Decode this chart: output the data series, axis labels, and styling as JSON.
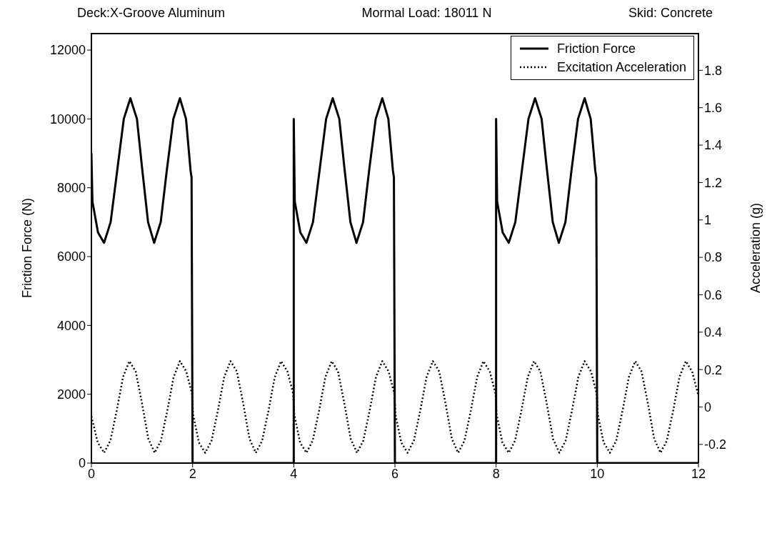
{
  "chart_data": {
    "type": "line",
    "title": "Deck:X-Groove Aluminum",
    "annotations": [
      "Mormal Load: 18011 N",
      "Skid: Concrete"
    ],
    "ylabel": "Friction Force (N)",
    "y2label": "Acceleration (g)",
    "xlim": [
      0,
      12
    ],
    "xticks": [
      0,
      2,
      4,
      6,
      8,
      10,
      12
    ],
    "ylim": [
      0,
      12500
    ],
    "yticks": [
      0,
      2000,
      4000,
      6000,
      8000,
      10000,
      12000
    ],
    "y2lim": [
      -0.3,
      2.0
    ],
    "y2ticks": [
      -0.2,
      0,
      0.2,
      0.4,
      0.6,
      0.8,
      1,
      1.2,
      1.4,
      1.6,
      1.8
    ],
    "legend": "top right",
    "marker": "none",
    "series": [
      {
        "name": "Friction Force",
        "color": "#000000",
        "line_style": "solid",
        "x": [
          0,
          0.02,
          0.13,
          0.25,
          0.38,
          0.51,
          0.64,
          0.77,
          0.9,
          1.0,
          1.12,
          1.24,
          1.37,
          1.49,
          1.62,
          1.75,
          1.87,
          1.96,
          1.98,
          2.0,
          4.0,
          4.0,
          4.02,
          4.13,
          4.25,
          4.38,
          4.51,
          4.64,
          4.77,
          4.9,
          5.0,
          5.12,
          5.24,
          5.37,
          5.49,
          5.62,
          5.75,
          5.87,
          5.96,
          5.98,
          6.0,
          8.0,
          8.0,
          8.02,
          8.13,
          8.25,
          8.38,
          8.51,
          8.64,
          8.77,
          8.9,
          9.0,
          9.12,
          9.24,
          9.37,
          9.49,
          9.62,
          9.75,
          9.87,
          9.96,
          9.98,
          10.0,
          12.0
        ],
        "values": [
          9000,
          7600,
          6700,
          6400,
          7000,
          8500,
          10000,
          10600,
          10000,
          8600,
          7000,
          6400,
          7000,
          8500,
          10000,
          10600,
          10000,
          8500,
          8300,
          0,
          0,
          10000,
          7600,
          6700,
          6400,
          7000,
          8500,
          10000,
          10600,
          10000,
          8600,
          7000,
          6400,
          7000,
          8500,
          10000,
          10600,
          10000,
          8500,
          8300,
          0,
          0,
          10000,
          7600,
          6700,
          6400,
          7000,
          8500,
          10000,
          10600,
          10000,
          8600,
          7000,
          6400,
          7000,
          8500,
          10000,
          10600,
          10000,
          8500,
          8300,
          0,
          0
        ]
      },
      {
        "name": "Excitation Acceleration",
        "color": "#000000",
        "line_style": "dotted",
        "axis": "y2",
        "x": [
          0,
          0.125,
          0.25,
          0.375,
          0.5,
          0.625,
          0.75,
          0.875,
          1,
          1.125,
          1.25,
          1.375,
          1.5,
          1.625,
          1.75,
          1.875,
          1.99,
          2.01,
          2.125,
          2.25,
          2.375,
          2.5,
          2.625,
          2.75,
          2.875,
          3,
          3.125,
          3.25,
          3.375,
          3.5,
          3.625,
          3.75,
          3.875,
          3.99,
          4.01,
          4.125,
          4.25,
          4.375,
          4.5,
          4.625,
          4.75,
          4.875,
          5,
          5.125,
          5.25,
          5.375,
          5.5,
          5.625,
          5.75,
          5.875,
          5.99,
          6.01,
          6.125,
          6.25,
          6.375,
          6.5,
          6.625,
          6.75,
          6.875,
          7,
          7.125,
          7.25,
          7.375,
          7.5,
          7.625,
          7.75,
          7.875,
          7.99,
          8.01,
          8.125,
          8.25,
          8.375,
          8.5,
          8.625,
          8.75,
          8.875,
          9,
          9.125,
          9.25,
          9.375,
          9.5,
          9.625,
          9.75,
          9.875,
          9.99,
          10.01,
          10.125,
          10.25,
          10.375,
          10.5,
          10.625,
          10.75,
          10.875,
          11,
          11.125,
          11.25,
          11.375,
          11.5,
          11.625,
          11.75,
          11.875,
          12
        ],
        "values": [
          -0.05,
          -0.19,
          -0.245,
          -0.18,
          -0.02,
          0.16,
          0.245,
          0.19,
          0.02,
          -0.17,
          -0.245,
          -0.18,
          -0.02,
          0.16,
          0.245,
          0.19,
          0.07,
          -0.04,
          -0.19,
          -0.245,
          -0.18,
          -0.02,
          0.16,
          0.245,
          0.19,
          0.02,
          -0.17,
          -0.245,
          -0.18,
          -0.02,
          0.16,
          0.245,
          0.19,
          0.07,
          -0.04,
          -0.19,
          -0.245,
          -0.18,
          -0.02,
          0.16,
          0.245,
          0.19,
          0.02,
          -0.17,
          -0.245,
          -0.18,
          -0.02,
          0.16,
          0.245,
          0.19,
          0.07,
          -0.04,
          -0.19,
          -0.245,
          -0.18,
          -0.02,
          0.16,
          0.245,
          0.19,
          0.02,
          -0.17,
          -0.245,
          -0.18,
          -0.02,
          0.16,
          0.245,
          0.19,
          0.07,
          -0.04,
          -0.19,
          -0.245,
          -0.18,
          -0.02,
          0.16,
          0.245,
          0.19,
          0.02,
          -0.17,
          -0.245,
          -0.18,
          -0.02,
          0.16,
          0.245,
          0.19,
          0.07,
          -0.04,
          -0.19,
          -0.245,
          -0.18,
          -0.02,
          0.16,
          0.245,
          0.19,
          0.02,
          -0.17,
          -0.245,
          -0.18,
          -0.02,
          0.16,
          0.245,
          0.19,
          0.06
        ]
      }
    ]
  }
}
